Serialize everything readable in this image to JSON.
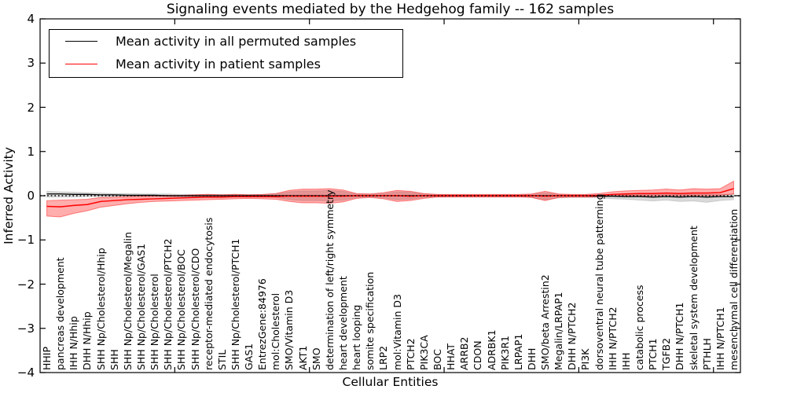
{
  "chart_data": {
    "type": "line",
    "title": "Signaling events mediated by the Hedgehog family -- 162 samples",
    "xlabel": "Cellular Entities",
    "ylabel": "Inferred Activity",
    "ylim": [
      -4,
      4
    ],
    "grid": false,
    "legend_position": "upper left",
    "yticks": [
      {
        "v": 4,
        "label": "4"
      },
      {
        "v": 3,
        "label": "3"
      },
      {
        "v": 2,
        "label": "2"
      },
      {
        "v": 1,
        "label": "1"
      },
      {
        "v": 0,
        "label": "0"
      },
      {
        "v": -1,
        "label": "−1"
      },
      {
        "v": -2,
        "label": "−2"
      },
      {
        "v": -3,
        "label": "−3"
      },
      {
        "v": -4,
        "label": "−4"
      }
    ],
    "xticks": [
      10,
      20,
      30,
      40,
      50
    ],
    "zero_line": {
      "y": 0,
      "style": "dotted",
      "color": "#000000"
    },
    "categories": [
      "HHIP",
      "pancreas development",
      "IHH N/Hhip",
      "DHH N/Hhip",
      "SHH Np/Cholesterol/Hhip",
      "SHH",
      "SHH Np/Cholesterol/Megalin",
      "SHH Np/Cholesterol/GAS1",
      "SHH Np/Cholesterol",
      "SHH Np/Cholesterol/PTCH2",
      "SHH Np/Cholesterol/BOC",
      "SHH Np/Cholesterol/CDO",
      "receptor-mediated endocytosis",
      "STIL",
      "SHH Np/Cholesterol/PTCH1",
      "GAS1",
      "EntrezGene:84976",
      "mol:Cholesterol",
      "SMO/Vitamin D3",
      "AKT1",
      "SMO",
      "determination of left/right symmetry",
      "heart development",
      "heart looping",
      "somite specification",
      "LRP2",
      "mol:Vitamin D3",
      "PTCH2",
      "PIK3CA",
      "BOC",
      "HHAT",
      "ARRB2",
      "CDON",
      "ADRBK1",
      "PIK3R1",
      "LRPAP1",
      "DHH",
      "SMO/beta Arrestin2",
      "Megalin/LRPAP1",
      "DHH N/PTCH2",
      "PI3K",
      "dorsoventral neural tube patterning",
      "IHH N/PTCH2",
      "IHH",
      "catabolic process",
      "PTCH1",
      "TGFB2",
      "DHH N/PTCH1",
      "skeletal system development",
      "PTHLH",
      "IHH N/PTCH1",
      "mesenchymal cell differentiation"
    ],
    "series": [
      {
        "name": "Mean activity in all permuted samples",
        "color": "#000000",
        "line_width": 1.3,
        "band_color": "#000000",
        "band_opacity": 0.15,
        "band_edge_opacity": 0.12,
        "values": [
          0.04,
          0.04,
          0.03,
          0.03,
          0.02,
          0.02,
          0.01,
          0.01,
          0.01,
          0.0,
          0.0,
          0.0,
          0.0,
          0.0,
          0.0,
          0.0,
          0.0,
          0.0,
          0.0,
          0.0,
          0.0,
          0.0,
          0.0,
          0.0,
          0.0,
          0.0,
          0.0,
          0.0,
          0.0,
          0.0,
          0.0,
          0.0,
          0.0,
          0.0,
          0.0,
          0.0,
          0.0,
          0.0,
          0.0,
          0.0,
          0.0,
          -0.01,
          -0.01,
          -0.02,
          -0.02,
          -0.03,
          -0.02,
          -0.03,
          -0.02,
          -0.03,
          -0.02,
          -0.02
        ],
        "band_upper": [
          0.1,
          0.09,
          0.08,
          0.07,
          0.06,
          0.05,
          0.05,
          0.04,
          0.04,
          0.04,
          0.03,
          0.03,
          0.03,
          0.03,
          0.03,
          0.03,
          0.03,
          0.04,
          0.09,
          0.11,
          0.11,
          0.12,
          0.1,
          0.04,
          0.03,
          0.05,
          0.09,
          0.08,
          0.04,
          0.03,
          0.02,
          0.02,
          0.02,
          0.02,
          0.02,
          0.02,
          0.03,
          0.07,
          0.03,
          0.02,
          0.02,
          0.02,
          0.03,
          0.03,
          0.03,
          0.03,
          0.03,
          0.03,
          0.03,
          0.03,
          0.03,
          0.04
        ],
        "band_lower": [
          -0.03,
          -0.03,
          -0.03,
          -0.02,
          -0.02,
          -0.02,
          -0.02,
          -0.02,
          -0.02,
          -0.02,
          -0.03,
          -0.03,
          -0.03,
          -0.03,
          -0.03,
          -0.03,
          -0.03,
          -0.04,
          -0.09,
          -0.11,
          -0.11,
          -0.12,
          -0.1,
          -0.04,
          -0.03,
          -0.05,
          -0.09,
          -0.08,
          -0.04,
          -0.03,
          -0.02,
          -0.02,
          -0.02,
          -0.02,
          -0.02,
          -0.02,
          -0.04,
          -0.09,
          -0.05,
          -0.04,
          -0.04,
          -0.05,
          -0.07,
          -0.08,
          -0.1,
          -0.12,
          -0.1,
          -0.13,
          -0.12,
          -0.15,
          -0.11,
          -0.09
        ]
      },
      {
        "name": "Mean activity in patient samples",
        "color": "#ff0000",
        "line_width": 1.5,
        "band_color": "#ff0000",
        "band_opacity": 0.32,
        "band_edge_opacity": 0.45,
        "values": [
          -0.24,
          -0.25,
          -0.22,
          -0.2,
          -0.13,
          -0.11,
          -0.09,
          -0.08,
          -0.07,
          -0.06,
          -0.05,
          -0.04,
          -0.03,
          -0.03,
          -0.02,
          -0.02,
          -0.02,
          -0.02,
          -0.01,
          -0.01,
          -0.01,
          -0.01,
          -0.01,
          0.0,
          0.0,
          0.0,
          0.0,
          -0.01,
          0.0,
          0.0,
          0.0,
          0.0,
          0.0,
          0.0,
          0.0,
          0.0,
          0.0,
          -0.01,
          0.0,
          0.0,
          0.0,
          0.01,
          0.03,
          0.04,
          0.05,
          0.05,
          0.06,
          0.05,
          0.06,
          0.06,
          0.07,
          0.16
        ],
        "band_upper": [
          -0.11,
          -0.1,
          -0.09,
          -0.08,
          -0.04,
          -0.03,
          -0.02,
          -0.01,
          0.0,
          0.01,
          0.01,
          0.02,
          0.03,
          0.02,
          0.03,
          0.02,
          0.03,
          0.05,
          0.12,
          0.15,
          0.15,
          0.16,
          0.13,
          0.05,
          0.04,
          0.07,
          0.12,
          0.1,
          0.05,
          0.03,
          0.03,
          0.03,
          0.03,
          0.03,
          0.03,
          0.03,
          0.04,
          0.1,
          0.04,
          0.03,
          0.03,
          0.05,
          0.09,
          0.11,
          0.12,
          0.13,
          0.15,
          0.13,
          0.16,
          0.15,
          0.16,
          0.33
        ],
        "band_lower": [
          -0.46,
          -0.48,
          -0.4,
          -0.34,
          -0.26,
          -0.22,
          -0.18,
          -0.15,
          -0.13,
          -0.12,
          -0.11,
          -0.1,
          -0.09,
          -0.08,
          -0.07,
          -0.06,
          -0.07,
          -0.08,
          -0.13,
          -0.16,
          -0.16,
          -0.17,
          -0.14,
          -0.06,
          -0.04,
          -0.07,
          -0.13,
          -0.11,
          -0.06,
          -0.03,
          -0.03,
          -0.03,
          -0.03,
          -0.03,
          -0.03,
          -0.03,
          -0.04,
          -0.11,
          -0.04,
          -0.03,
          -0.03,
          -0.02,
          -0.01,
          0.0,
          0.0,
          0.0,
          0.01,
          0.0,
          0.01,
          0.0,
          0.01,
          0.04
        ]
      }
    ]
  }
}
